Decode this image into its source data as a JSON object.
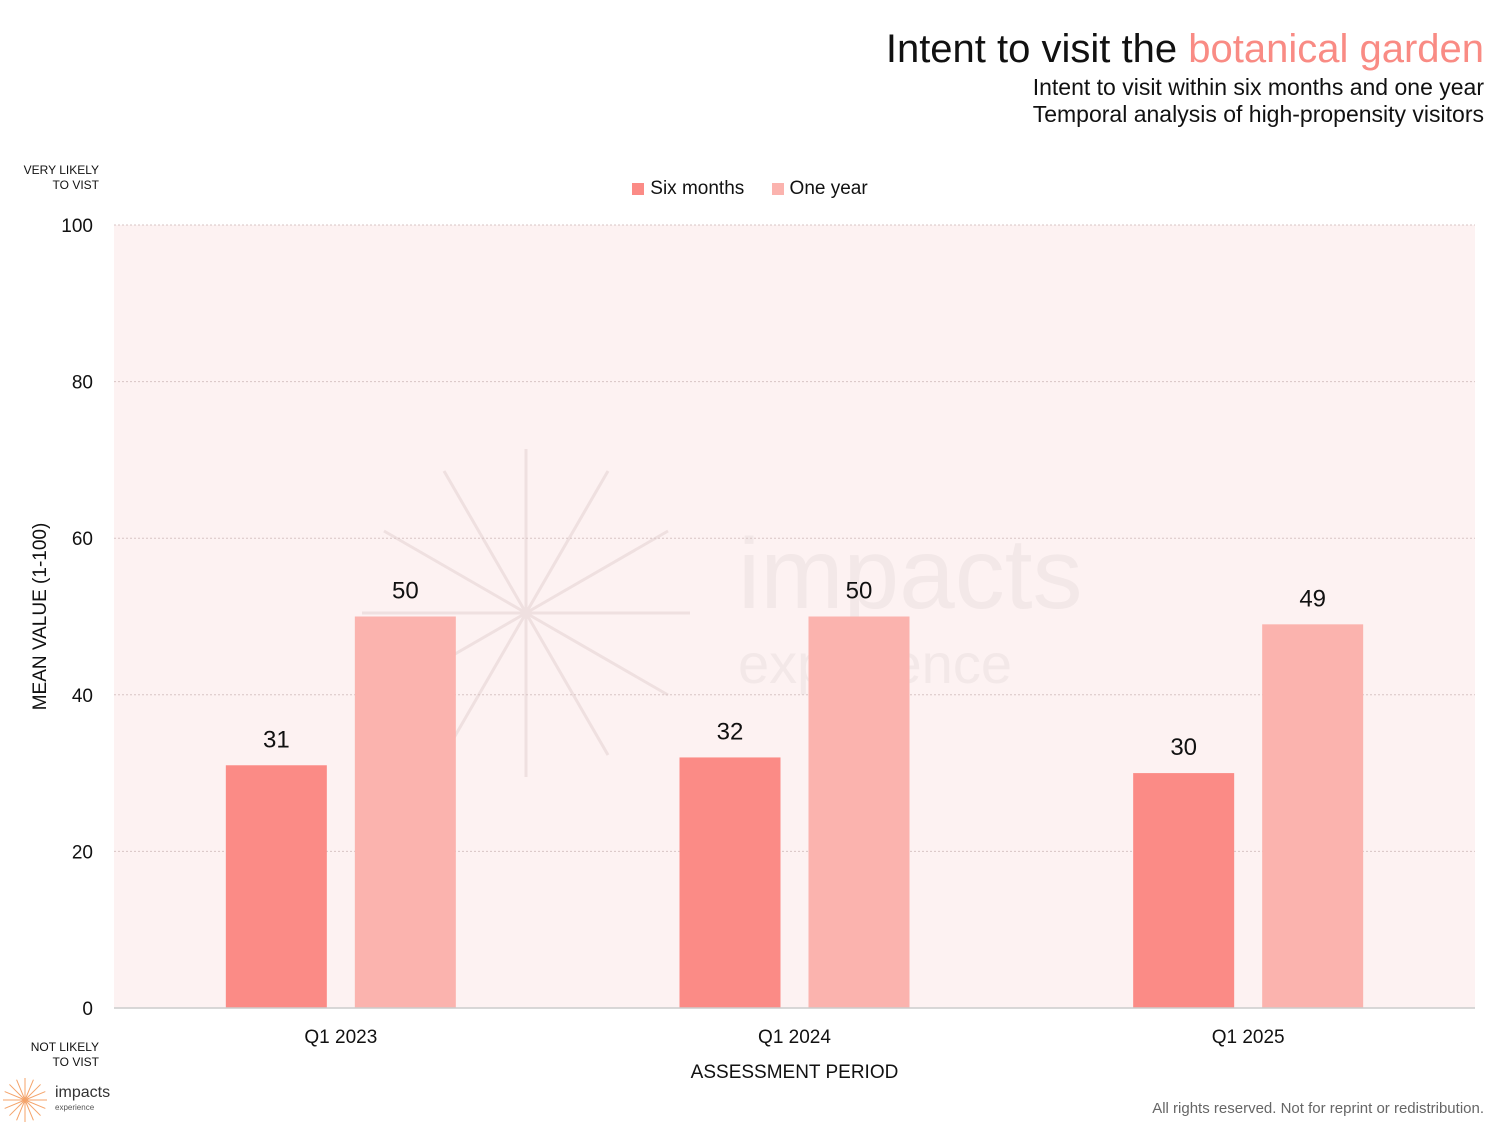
{
  "header": {
    "title_prefix": "Intent to visit the ",
    "title_accent": "botanical garden",
    "subtitle_1": "Intent to visit within six months and one year",
    "subtitle_2": "Temporal analysis of high-propensity visitors"
  },
  "axis_notes": {
    "top_1": "VERY LIKELY",
    "top_2": "TO VIST",
    "bottom_1": "NOT LIKELY",
    "bottom_2": "TO VIST"
  },
  "watermark": {
    "word_1": "impacts",
    "word_2": "experience"
  },
  "logo": {
    "word": "impacts",
    "sub": "experience"
  },
  "footer": {
    "text": "All rights reserved. Not for reprint or redistribution."
  },
  "colors": {
    "six_months": "#fb8b86",
    "one_year": "#fbb3ae",
    "plot_bg": "#fdf2f2",
    "accent": "#f98b84"
  },
  "chart_data": {
    "type": "bar",
    "categories": [
      "Q1 2023",
      "Q1 2024",
      "Q1 2025"
    ],
    "series": [
      {
        "name": "Six months",
        "values": [
          31,
          32,
          30
        ]
      },
      {
        "name": "One year",
        "values": [
          50,
          50,
          49
        ]
      }
    ],
    "xlabel": "ASSESSMENT PERIOD",
    "ylabel": "MEAN VALUE (1-100)",
    "ylim": [
      0,
      100
    ],
    "yticks": [
      0,
      20,
      40,
      60,
      80,
      100
    ],
    "grid": true,
    "legend": "top-center"
  }
}
